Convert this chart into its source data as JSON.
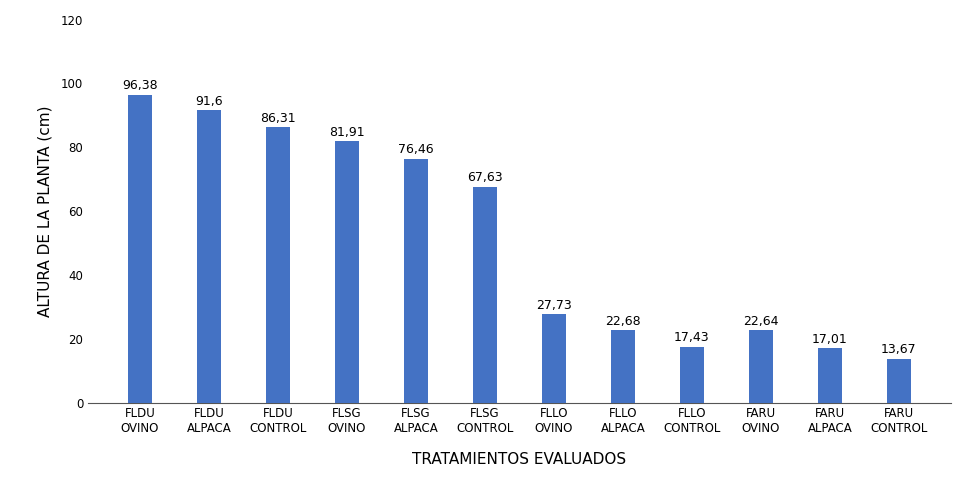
{
  "categories": [
    "FLDU\nOVINO",
    "FLDU\nALPACA",
    "FLDU\nCONTROL",
    "FLSG\nOVINO",
    "FLSG\nALPACA",
    "FLSG\nCONTROL",
    "FLLO\nOVINO",
    "FLLO\nALPACA",
    "FLLO\nCONTROL",
    "FARU\nOVINO",
    "FARU\nALPACA",
    "FARU\nCONTROL"
  ],
  "values": [
    96.38,
    91.6,
    86.31,
    81.91,
    76.46,
    67.63,
    27.73,
    22.68,
    17.43,
    22.64,
    17.01,
    13.67
  ],
  "labels": [
    "96,38",
    "91,6",
    "86,31",
    "81,91",
    "76,46",
    "67,63",
    "27,73",
    "22,68",
    "17,43",
    "22,64",
    "17,01",
    "13,67"
  ],
  "bar_color": "#4472C4",
  "ylabel": "ALTURA DE LA PLANTA (cm)",
  "xlabel": "TRATAMIENTOS EVALUADOS",
  "ylim": [
    0,
    120
  ],
  "yticks": [
    0,
    20,
    40,
    60,
    80,
    100,
    120
  ],
  "bar_width": 0.35,
  "label_fontsize": 9,
  "axis_label_fontsize": 11,
  "tick_fontsize": 8.5
}
